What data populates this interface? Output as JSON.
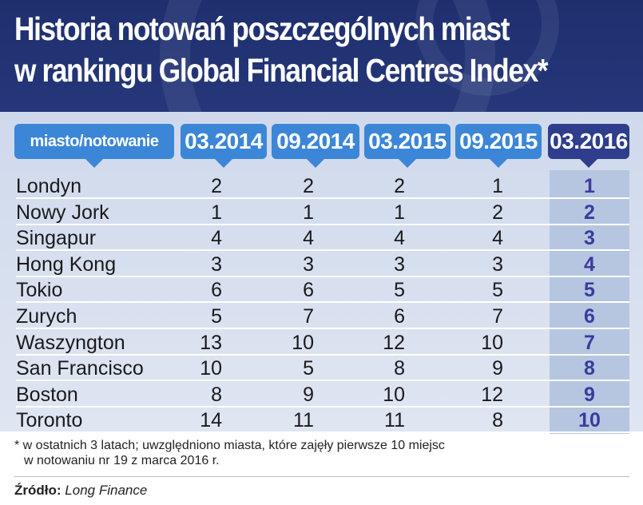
{
  "title": {
    "line1": "Historia notowań poszczególnych miast",
    "line2": "w rankingu Global Financial Centres Index*"
  },
  "chart_data": {
    "type": "table",
    "columns": [
      "miasto/notowanie",
      "03.2014",
      "09.2014",
      "03.2015",
      "09.2015",
      "03.2016"
    ],
    "rows": [
      {
        "city": "Londyn",
        "values": [
          2,
          2,
          2,
          1,
          1
        ]
      },
      {
        "city": "Nowy Jork",
        "values": [
          1,
          1,
          1,
          2,
          2
        ]
      },
      {
        "city": "Singapur",
        "values": [
          4,
          4,
          4,
          4,
          3
        ]
      },
      {
        "city": "Hong Kong",
        "values": [
          3,
          3,
          3,
          3,
          4
        ]
      },
      {
        "city": "Tokio",
        "values": [
          6,
          6,
          5,
          5,
          5
        ]
      },
      {
        "city": "Zurych",
        "values": [
          5,
          7,
          6,
          7,
          6
        ]
      },
      {
        "city": "Waszyngton",
        "values": [
          13,
          10,
          12,
          10,
          7
        ]
      },
      {
        "city": "San Francisco",
        "values": [
          10,
          5,
          8,
          9,
          8
        ]
      },
      {
        "city": "Boston",
        "values": [
          8,
          9,
          10,
          12,
          9
        ]
      },
      {
        "city": "Toronto",
        "values": [
          14,
          11,
          11,
          8,
          10
        ]
      }
    ]
  },
  "footnote": {
    "line1": "* w ostatnich 3 latach; uwzględniono miasta, które zajęły pierwsze 10 miejsc",
    "line2": "w notowaniu nr 19 z marca 2016 r."
  },
  "source": {
    "label": "Źródło:",
    "value": "Long Finance"
  },
  "colors": {
    "header_bg": "#1f2f6e",
    "column_header": "#3c86d8",
    "highlight_header": "#2e3e8c",
    "highlight_text": "#3c3aa0",
    "table_bg": "#d4ddee"
  }
}
